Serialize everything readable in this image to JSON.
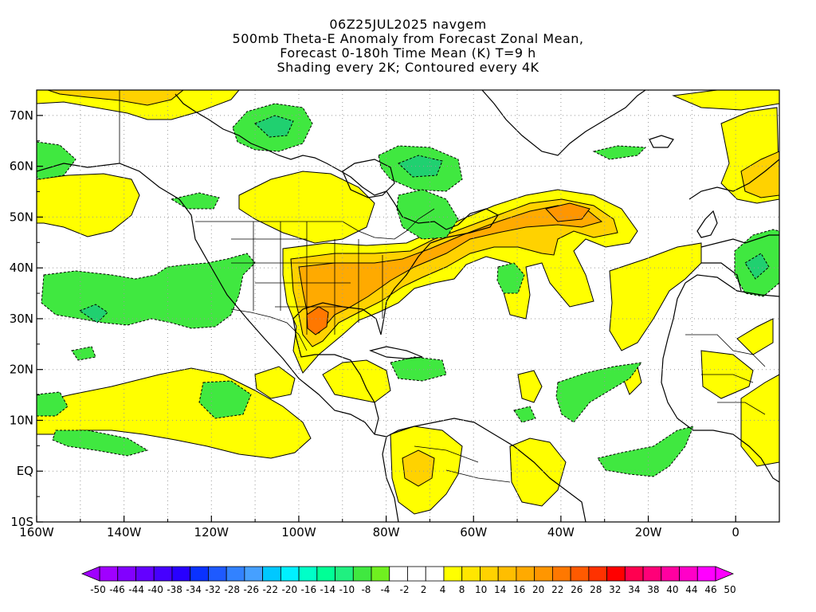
{
  "title": {
    "lines": [
      "06Z25JUL2025 navgem",
      "500mb Theta-E Anomaly from Forecast Zonal Mean,",
      "Forecast 0-180h Time Mean (K) T=9 h",
      "Shading every 2K; Contoured every 4K"
    ]
  },
  "map": {
    "lon_range": [
      -160,
      10
    ],
    "lat_range": [
      -10,
      75
    ],
    "x_ticks": [
      "160W",
      "140W",
      "120W",
      "100W",
      "80W",
      "60W",
      "40W",
      "20W",
      "0"
    ],
    "y_ticks": [
      "10S",
      "EQ",
      "10N",
      "20N",
      "30N",
      "40N",
      "50N",
      "60N",
      "70N"
    ],
    "grid_style": "dotted"
  },
  "colorbar": {
    "labels": [
      "-50",
      "-46",
      "-44",
      "-40",
      "-38",
      "-34",
      "-32",
      "-28",
      "-26",
      "-22",
      "-20",
      "-16",
      "-14",
      "-10",
      "-8",
      "-4",
      "-2",
      "2",
      "4",
      "8",
      "10",
      "14",
      "16",
      "20",
      "22",
      "26",
      "28",
      "32",
      "34",
      "38",
      "40",
      "44",
      "46",
      "50"
    ],
    "colors": [
      "#a000ff",
      "#8200ff",
      "#6400ff",
      "#4600ff",
      "#2800ff",
      "#0a32ff",
      "#1e5aff",
      "#3282ff",
      "#46a0ff",
      "#00c8ff",
      "#00f0ff",
      "#00ffc8",
      "#00ff96",
      "#20f080",
      "#40e840",
      "#70f020",
      "#ffffff",
      "#ffffff",
      "#ffffff",
      "#ffff00",
      "#ffe600",
      "#ffd200",
      "#ffbe00",
      "#ffaa00",
      "#ff9600",
      "#ff7800",
      "#ff5a00",
      "#ff3200",
      "#ff0000",
      "#ff0050",
      "#ff0078",
      "#ff00a0",
      "#ff00c8",
      "#ff00ff"
    ]
  },
  "anomaly_colors": {
    "positive_weak": "#ffff00",
    "positive_mid": "#ffd200",
    "positive_strong": "#ffaa00",
    "positive_max": "#ff7800",
    "negative_weak": "#40e840",
    "negative_mid": "#20d070"
  }
}
